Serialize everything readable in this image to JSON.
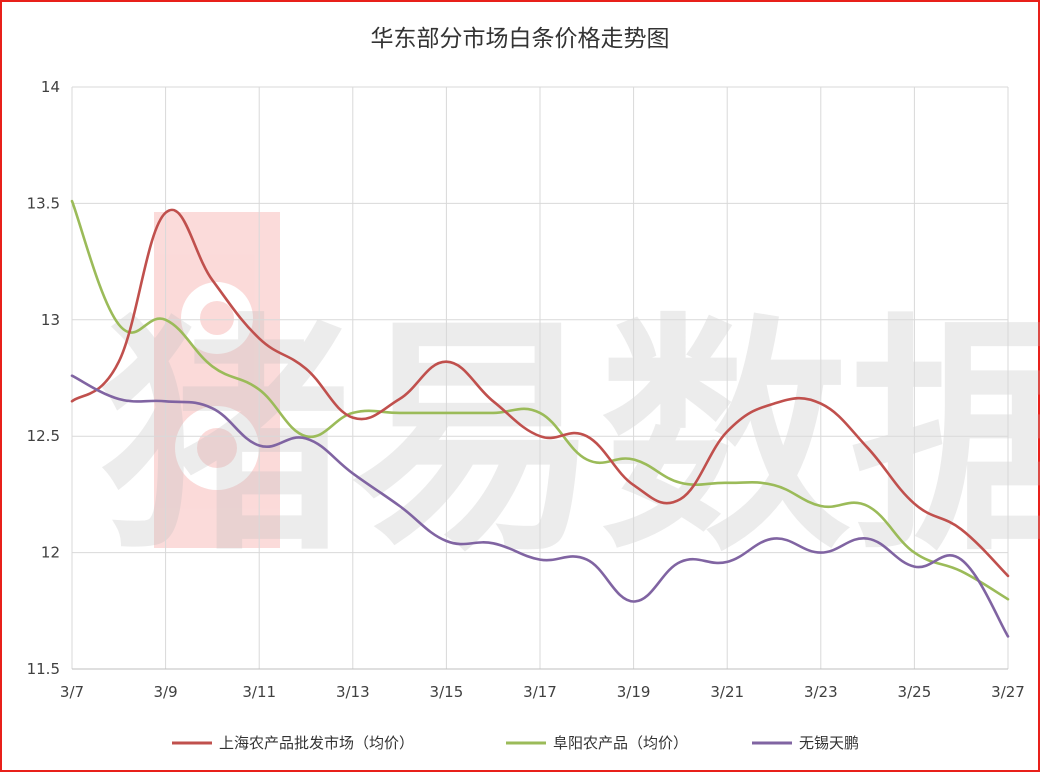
{
  "chart_data": {
    "type": "line",
    "title": "华东部分市场白条价格走势图",
    "xlabel": "",
    "ylabel": "",
    "x_tick_labels": [
      "3/7",
      "3/9",
      "3/11",
      "3/13",
      "3/15",
      "3/17",
      "3/19",
      "3/21",
      "3/23",
      "3/25",
      "3/27"
    ],
    "x_days": [
      7,
      8,
      9,
      10,
      11,
      12,
      13,
      14,
      15,
      16,
      17,
      18,
      19,
      20,
      21,
      22,
      23,
      24,
      25,
      26,
      27
    ],
    "ylim": [
      11.5,
      14
    ],
    "y_ticks": [
      "11.5",
      "12",
      "12.5",
      "13",
      "13.5",
      "14"
    ],
    "grid": true,
    "legend_position": "bottom",
    "watermark": "猪易数据",
    "series": [
      {
        "name": "上海农产品批发市场（均价）",
        "color": "#c0504d",
        "values": [
          12.65,
          12.82,
          13.46,
          13.17,
          12.92,
          12.79,
          12.58,
          12.66,
          12.82,
          12.65,
          12.5,
          12.5,
          12.29,
          12.23,
          12.52,
          12.64,
          12.64,
          12.45,
          12.21,
          12.1,
          11.9
        ]
      },
      {
        "name": "阜阳农产品（均价）",
        "color": "#9bbb59",
        "values": [
          13.51,
          12.98,
          13.0,
          12.8,
          12.7,
          12.5,
          12.6,
          12.6,
          12.6,
          12.6,
          12.6,
          12.4,
          12.4,
          12.3,
          12.3,
          12.29,
          12.2,
          12.2,
          12.0,
          11.92,
          11.8
        ]
      },
      {
        "name": "无锡天鹏",
        "color": "#8064a2",
        "values": [
          12.76,
          12.66,
          12.65,
          12.62,
          12.46,
          12.49,
          12.34,
          12.2,
          12.05,
          12.04,
          11.97,
          11.97,
          11.79,
          11.96,
          11.96,
          12.06,
          12.0,
          12.06,
          11.94,
          11.97,
          11.64
        ]
      }
    ]
  }
}
